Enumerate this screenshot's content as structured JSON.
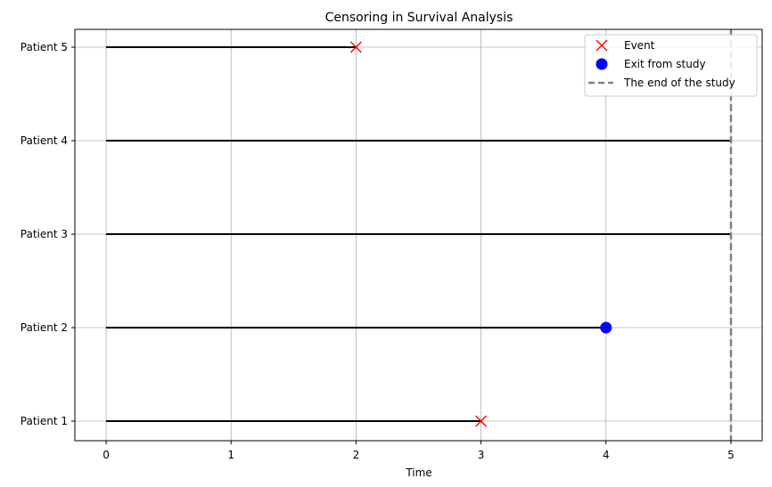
{
  "chart_data": {
    "type": "timeline",
    "title": "Censoring in Survival Analysis",
    "xlabel": "Time",
    "ylabel": "",
    "xlim": [
      -0.25,
      5.25
    ],
    "xticks": [
      "0",
      "1",
      "2",
      "3",
      "4",
      "5"
    ],
    "grid": true,
    "legend_position": "top-right",
    "patients": [
      {
        "name": "Patient 1",
        "start": 0,
        "end": 3,
        "outcome": "event"
      },
      {
        "name": "Patient 2",
        "start": 0,
        "end": 4,
        "outcome": "exit"
      },
      {
        "name": "Patient 3",
        "start": 0,
        "end": 5,
        "outcome": "none"
      },
      {
        "name": "Patient 4",
        "start": 0,
        "end": 5,
        "outcome": "none"
      },
      {
        "name": "Patient 5",
        "start": 0,
        "end": 2,
        "outcome": "event"
      }
    ],
    "study_end": 5,
    "legend": [
      {
        "label": "Event",
        "marker": "x",
        "color": "#ff0000"
      },
      {
        "label": "Exit from study",
        "marker": "circle",
        "color": "#0000ff"
      },
      {
        "label": "The end of the study",
        "marker": "dashed-line",
        "color": "#808080"
      }
    ],
    "colors": {
      "line": "#000000",
      "event": "#ff0000",
      "exit": "#0000ff",
      "study_end": "#808080",
      "grid": "#b0b0b0"
    }
  }
}
